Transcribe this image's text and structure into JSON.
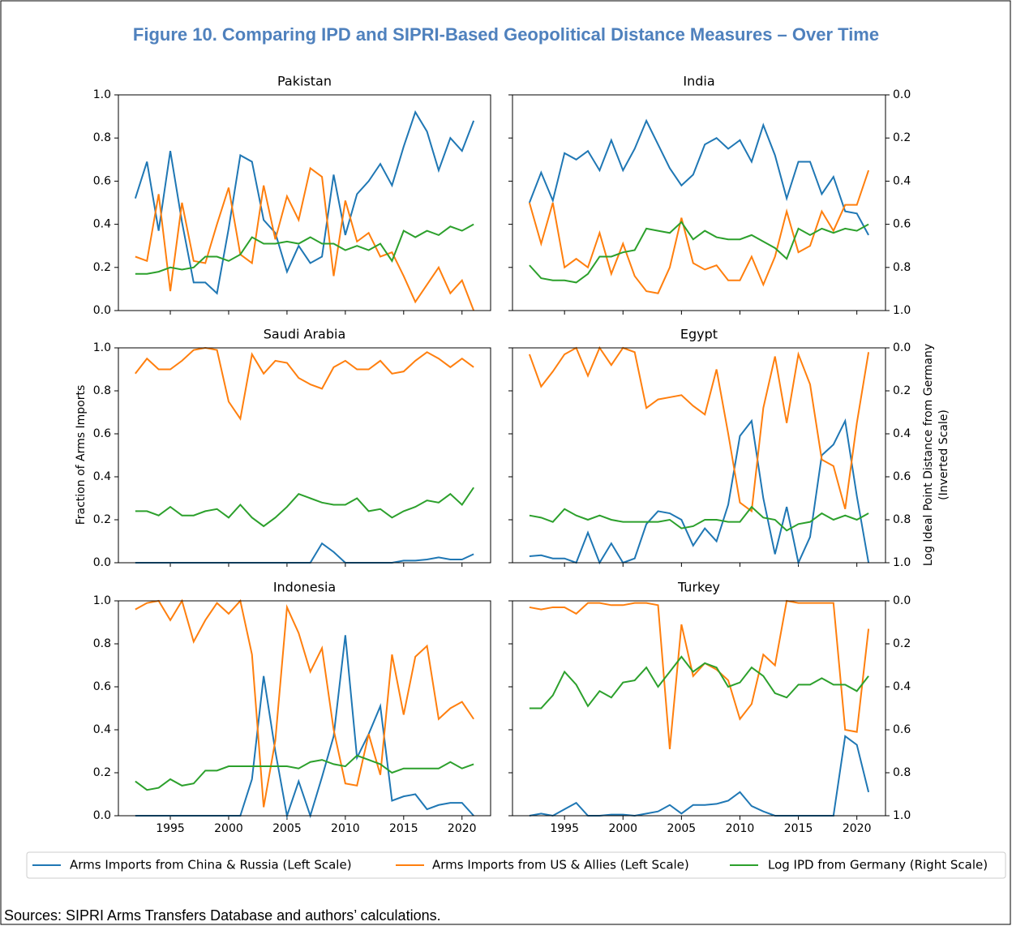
{
  "chart_data": {
    "type": "line",
    "title": "Figure 10. Comparing IPD and SIPRI-Based Geopolitical Distance Measures – Over Time",
    "note": "Sources: SIPRI Arms Transfers Database and authors’ calculations.",
    "ylabel": "Fraction of Arms Imports",
    "y2label": [
      "Log Ideal Point Distance from Germany",
      "(Inverted Scale)"
    ],
    "x": [
      1992,
      1993,
      1994,
      1995,
      1996,
      1997,
      1998,
      1999,
      2000,
      2001,
      2002,
      2003,
      2004,
      2005,
      2006,
      2007,
      2008,
      2009,
      2010,
      2011,
      2012,
      2013,
      2014,
      2015,
      2016,
      2017,
      2018,
      2019,
      2020,
      2021
    ],
    "xlim": [
      1990.55,
      2022.45
    ],
    "xticks": [
      1995,
      2000,
      2005,
      2010,
      2015,
      2020
    ],
    "ylim": [
      0,
      1
    ],
    "yticks": [
      {
        "value": 0,
        "label": "0.0"
      },
      0.2,
      0.4,
      0.6,
      0.8,
      {
        "value": 1,
        "label": "1.0"
      }
    ],
    "y2lim": [
      1,
      0
    ],
    "y2ticks": [
      {
        "value": 0,
        "label": "0.0"
      },
      0.2,
      0.4,
      0.6,
      0.8,
      {
        "value": 1,
        "label": "1.0"
      }
    ],
    "series": [
      {
        "name": "Arms Imports from China & Russia (Left Scale)",
        "color": "#1f77b4",
        "axis": "y"
      },
      {
        "name": "Arms Imports from US & Allies (Left Scale)",
        "color": "#ff7f0e",
        "axis": "y"
      },
      {
        "name": "Log IPD from Germany (Right Scale)",
        "color": "#2ca02c",
        "axis": "y2"
      }
    ],
    "panels": [
      {
        "title": "Pakistan",
        "series": [
          {
            "values": [
              0.52,
              0.69,
              0.37,
              0.74,
              0.41,
              0.13,
              0.13,
              0.08,
              0.38,
              0.72,
              0.69,
              0.42,
              0.36,
              0.18,
              0.3,
              0.22,
              0.25,
              0.63,
              0.35,
              0.54,
              0.6,
              0.68,
              0.58,
              0.76,
              0.92,
              0.83,
              0.65,
              0.8,
              0.74,
              0.88
            ]
          },
          {
            "values": [
              0.25,
              0.23,
              0.54,
              0.09,
              0.5,
              0.23,
              0.22,
              0.4,
              0.57,
              0.26,
              0.22,
              0.58,
              0.33,
              0.53,
              0.42,
              0.66,
              0.62,
              0.16,
              0.51,
              0.32,
              0.36,
              0.25,
              0.27,
              0.16,
              0.04,
              0.12,
              0.2,
              0.08,
              0.14,
              0.0
            ]
          },
          {
            "values": [
              0.83,
              0.83,
              0.82,
              0.8,
              0.81,
              0.8,
              0.75,
              0.75,
              0.77,
              0.74,
              0.66,
              0.69,
              0.69,
              0.68,
              0.69,
              0.66,
              0.69,
              0.69,
              0.72,
              0.7,
              0.72,
              0.69,
              0.77,
              0.63,
              0.66,
              0.63,
              0.65,
              0.61,
              0.63,
              0.6
            ]
          }
        ]
      },
      {
        "title": "India",
        "series": [
          {
            "values": [
              0.5,
              0.64,
              0.51,
              0.73,
              0.7,
              0.74,
              0.65,
              0.79,
              0.65,
              0.75,
              0.88,
              0.77,
              0.66,
              0.58,
              0.63,
              0.77,
              0.8,
              0.75,
              0.79,
              0.69,
              0.86,
              0.72,
              0.52,
              0.69,
              0.69,
              0.54,
              0.62,
              0.46,
              0.45,
              0.35
            ]
          },
          {
            "values": [
              0.5,
              0.31,
              0.5,
              0.2,
              0.24,
              0.2,
              0.36,
              0.17,
              0.31,
              0.16,
              0.09,
              0.08,
              0.2,
              0.43,
              0.22,
              0.19,
              0.21,
              0.14,
              0.14,
              0.25,
              0.12,
              0.25,
              0.46,
              0.27,
              0.3,
              0.46,
              0.37,
              0.49,
              0.49,
              0.65
            ]
          },
          {
            "values": [
              0.79,
              0.85,
              0.86,
              0.86,
              0.87,
              0.83,
              0.75,
              0.75,
              0.73,
              0.72,
              0.62,
              0.63,
              0.64,
              0.59,
              0.67,
              0.63,
              0.66,
              0.67,
              0.67,
              0.65,
              0.68,
              0.71,
              0.76,
              0.62,
              0.65,
              0.62,
              0.64,
              0.62,
              0.63,
              0.6
            ]
          }
        ]
      },
      {
        "title": "Saudi Arabia",
        "series": [
          {
            "values": [
              0,
              0,
              0,
              0,
              0,
              0,
              0,
              0,
              0,
              0,
              0,
              0,
              0,
              0,
              0,
              0,
              0.09,
              0.05,
              0,
              0,
              0,
              0,
              0,
              0.01,
              0.01,
              0.015,
              0.025,
              0.015,
              0.015,
              0.04
            ]
          },
          {
            "values": [
              0.88,
              0.95,
              0.9,
              0.9,
              0.94,
              0.99,
              1.0,
              0.99,
              0.75,
              0.67,
              0.97,
              0.88,
              0.94,
              0.93,
              0.86,
              0.83,
              0.81,
              0.91,
              0.94,
              0.9,
              0.9,
              0.94,
              0.88,
              0.89,
              0.94,
              0.98,
              0.95,
              0.91,
              0.95,
              0.91
            ]
          },
          {
            "values": [
              0.76,
              0.76,
              0.78,
              0.74,
              0.78,
              0.78,
              0.76,
              0.75,
              0.79,
              0.73,
              0.79,
              0.83,
              0.79,
              0.74,
              0.68,
              0.7,
              0.72,
              0.73,
              0.73,
              0.7,
              0.76,
              0.75,
              0.79,
              0.76,
              0.74,
              0.71,
              0.72,
              0.68,
              0.73,
              0.65
            ]
          }
        ]
      },
      {
        "title": "Egypt",
        "series": [
          {
            "values": [
              0.03,
              0.035,
              0.02,
              0.02,
              0,
              0.14,
              0,
              0.09,
              0,
              0.02,
              0.18,
              0.24,
              0.23,
              0.2,
              0.08,
              0.16,
              0.1,
              0.27,
              0.59,
              0.66,
              0.3,
              0.04,
              0.26,
              0,
              0.12,
              0.5,
              0.55,
              0.66,
              0.31,
              0
            ]
          },
          {
            "values": [
              0.97,
              0.82,
              0.89,
              0.97,
              1.0,
              0.87,
              1.0,
              0.92,
              1.0,
              0.98,
              0.72,
              0.76,
              0.77,
              0.78,
              0.73,
              0.69,
              0.9,
              0.6,
              0.28,
              0.24,
              0.72,
              0.96,
              0.65,
              0.97,
              0.83,
              0.48,
              0.45,
              0.25,
              0.65,
              0.98
            ]
          },
          {
            "values": [
              0.78,
              0.79,
              0.81,
              0.75,
              0.78,
              0.8,
              0.78,
              0.8,
              0.81,
              0.81,
              0.81,
              0.81,
              0.8,
              0.84,
              0.83,
              0.8,
              0.8,
              0.81,
              0.81,
              0.74,
              0.79,
              0.8,
              0.85,
              0.82,
              0.81,
              0.77,
              0.8,
              0.78,
              0.8,
              0.77
            ]
          }
        ]
      },
      {
        "title": "Indonesia",
        "series": [
          {
            "values": [
              0,
              0,
              0,
              0,
              0,
              0,
              0,
              0,
              0,
              0,
              0.17,
              0.65,
              0.3,
              0,
              0.16,
              0,
              0.18,
              0.37,
              0.84,
              0.27,
              0.38,
              0.51,
              0.07,
              0.09,
              0.1,
              0.03,
              0.05,
              0.06,
              0.06,
              0
            ]
          },
          {
            "values": [
              0.96,
              0.99,
              1.0,
              0.91,
              1.0,
              0.81,
              0.91,
              0.99,
              0.94,
              1.0,
              0.75,
              0.04,
              0.35,
              0.97,
              0.85,
              0.67,
              0.78,
              0.4,
              0.15,
              0.14,
              0.38,
              0.19,
              0.75,
              0.47,
              0.74,
              0.79,
              0.45,
              0.5,
              0.53,
              0.45
            ]
          },
          {
            "values": [
              0.84,
              0.88,
              0.87,
              0.83,
              0.86,
              0.85,
              0.79,
              0.79,
              0.77,
              0.77,
              0.77,
              0.77,
              0.77,
              0.77,
              0.78,
              0.75,
              0.74,
              0.76,
              0.77,
              0.72,
              0.74,
              0.76,
              0.8,
              0.78,
              0.78,
              0.78,
              0.78,
              0.75,
              0.78,
              0.76
            ]
          }
        ]
      },
      {
        "title": "Turkey",
        "series": [
          {
            "values": [
              0,
              0.01,
              0,
              0.03,
              0.06,
              0,
              0,
              0.005,
              0.005,
              0,
              0.01,
              0.02,
              0.05,
              0.01,
              0.05,
              0.05,
              0.055,
              0.07,
              0.11,
              0.045,
              0.02,
              0,
              0,
              0,
              0,
              0,
              0,
              0.37,
              0.33,
              0.11
            ]
          },
          {
            "values": [
              0.97,
              0.96,
              0.97,
              0.97,
              0.94,
              0.99,
              0.99,
              0.98,
              0.98,
              0.99,
              0.99,
              0.98,
              0.31,
              0.89,
              0.65,
              0.71,
              0.68,
              0.63,
              0.45,
              0.52,
              0.75,
              0.7,
              1.0,
              0.99,
              0.99,
              0.99,
              0.99,
              0.4,
              0.39,
              0.87
            ]
          },
          {
            "values": [
              0.5,
              0.5,
              0.44,
              0.33,
              0.39,
              0.49,
              0.42,
              0.45,
              0.38,
              0.37,
              0.31,
              0.4,
              0.33,
              0.26,
              0.33,
              0.29,
              0.31,
              0.4,
              0.38,
              0.31,
              0.35,
              0.43,
              0.45,
              0.39,
              0.39,
              0.36,
              0.39,
              0.39,
              0.42,
              0.35
            ]
          }
        ]
      }
    ]
  }
}
